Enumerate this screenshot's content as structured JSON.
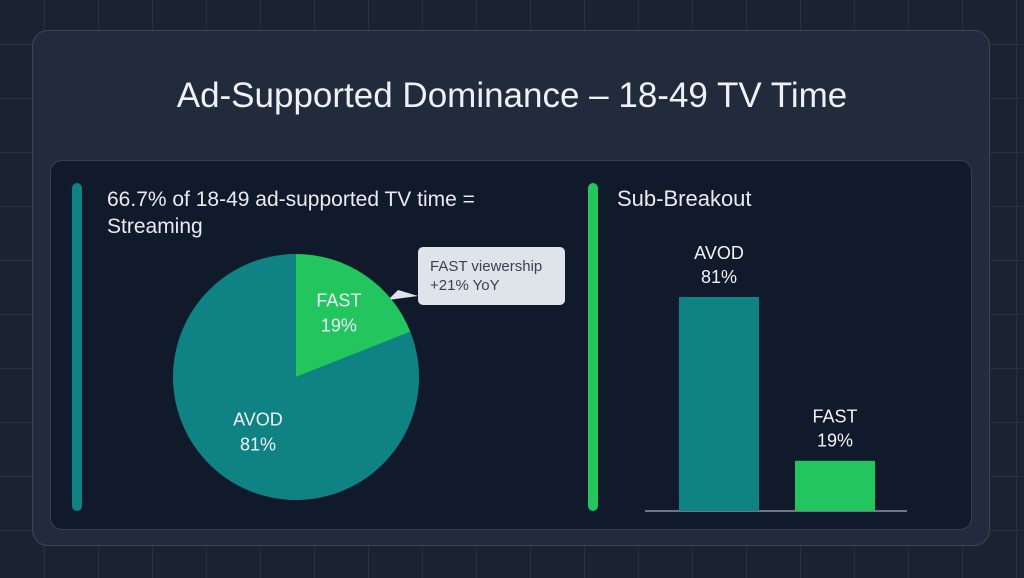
{
  "title": "Ad-Supported Dominance – 18-49 TV Time",
  "chart_data": [
    {
      "type": "pie",
      "title": "66.7% of 18-49 ad-supported TV time = Streaming",
      "categories": [
        "AVOD",
        "FAST"
      ],
      "values": [
        81,
        19
      ],
      "value_labels": [
        "81%",
        "19%"
      ],
      "colors": [
        "#0f8283",
        "#22c55e"
      ],
      "annotation": [
        "FAST viewership",
        "+21% YoY"
      ]
    },
    {
      "type": "bar",
      "title": "Sub-Breakout",
      "categories": [
        "AVOD",
        "FAST"
      ],
      "values": [
        81,
        19
      ],
      "value_labels": [
        "81%",
        "19%"
      ],
      "colors": [
        "#0f8283",
        "#22c55e"
      ]
    }
  ]
}
